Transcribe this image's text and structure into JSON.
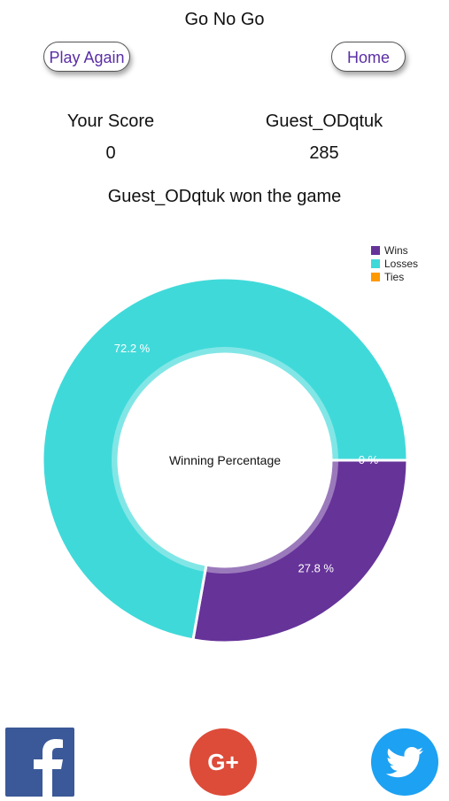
{
  "header": {
    "title": "Go No Go"
  },
  "buttons": {
    "play_again": "Play Again",
    "home": "Home"
  },
  "scores": {
    "you": {
      "label": "Your Score",
      "value": "0"
    },
    "opponent": {
      "label": "Guest_ODqtuk",
      "value": "285"
    }
  },
  "result_text": "Guest_ODqtuk won the game",
  "chart_data": {
    "type": "pie",
    "center_label": "Winning Percentage",
    "legend_position": "top-right",
    "slices": [
      {
        "name": "Wins",
        "value": 27.8,
        "label": "27.8 %",
        "color": "#663399"
      },
      {
        "name": "Losses",
        "value": 72.2,
        "label": "72.2 %",
        "color": "#40d9d9"
      },
      {
        "name": "Ties",
        "value": 0,
        "label": "0 %",
        "color": "#ff9900"
      }
    ]
  },
  "social": {
    "facebook": {
      "icon": "facebook-icon",
      "color": "#3b5998",
      "glyph": "f"
    },
    "google_plus": {
      "icon": "google-plus-icon",
      "color": "#dd4b39",
      "glyph": "G+"
    },
    "twitter": {
      "icon": "twitter-icon",
      "color": "#1da1f2"
    }
  }
}
